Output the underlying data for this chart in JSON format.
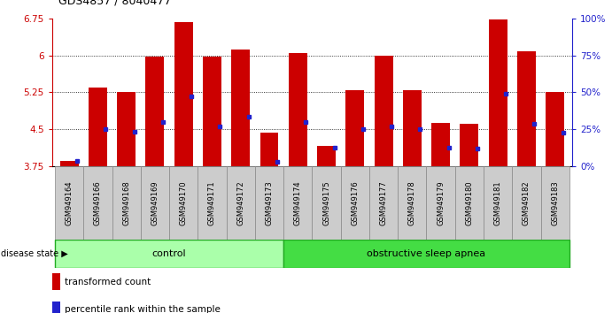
{
  "title": "GDS4857 / 8040477",
  "samples": [
    "GSM949164",
    "GSM949166",
    "GSM949168",
    "GSM949169",
    "GSM949170",
    "GSM949171",
    "GSM949172",
    "GSM949173",
    "GSM949174",
    "GSM949175",
    "GSM949176",
    "GSM949177",
    "GSM949178",
    "GSM949179",
    "GSM949180",
    "GSM949181",
    "GSM949182",
    "GSM949183"
  ],
  "red_values": [
    3.85,
    5.35,
    5.25,
    5.97,
    6.68,
    5.97,
    6.13,
    4.42,
    6.05,
    4.15,
    5.3,
    6.0,
    5.3,
    4.63,
    4.6,
    6.73,
    6.08,
    5.25
  ],
  "blue_values": [
    3.85,
    4.5,
    4.45,
    4.65,
    5.17,
    4.55,
    4.75,
    3.83,
    4.65,
    4.13,
    4.5,
    4.55,
    4.5,
    4.12,
    4.1,
    5.22,
    4.6,
    4.42
  ],
  "ymin": 3.75,
  "ymax": 6.75,
  "yticks": [
    3.75,
    4.5,
    5.25,
    6.0,
    6.75
  ],
  "ytick_labels": [
    "3.75",
    "4.5",
    "5.25",
    "6",
    "6.75"
  ],
  "right_yticks_pct": [
    0,
    25,
    50,
    75,
    100
  ],
  "control_count": 8,
  "bar_color": "#cc0000",
  "blue_color": "#2222cc",
  "bg_color": "#ffffff",
  "control_color": "#aaffaa",
  "apnea_color": "#44dd44",
  "box_edge_color": "#22aa22",
  "tick_bg_color": "#cccccc",
  "control_label": "control",
  "apnea_label": "obstructive sleep apnea",
  "legend_red": "transformed count",
  "legend_blue": "percentile rank within the sample"
}
